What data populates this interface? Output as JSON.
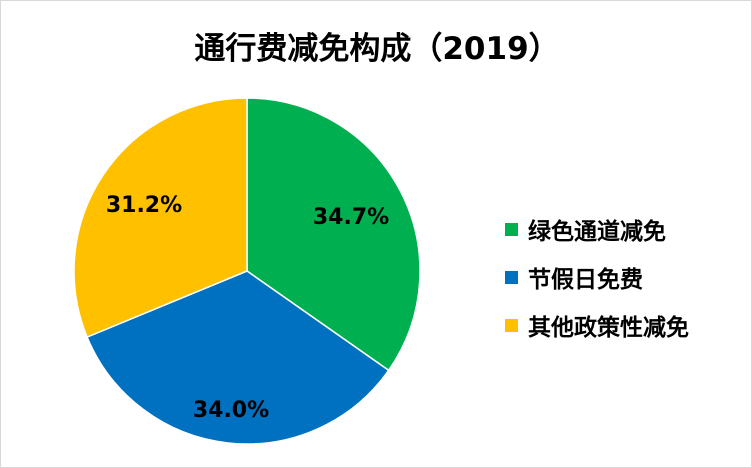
{
  "chart_data": {
    "type": "pie",
    "title": "通行费减免构成（2019）",
    "categories": [
      "绿色通道减免",
      "节假日免费",
      "其他政策性减免"
    ],
    "values": [
      34.7,
      34.0,
      31.2
    ],
    "labels": [
      "34.7%",
      "34.0%",
      "31.2%"
    ],
    "colors": [
      "#00B050",
      "#0070C0",
      "#FFC000"
    ],
    "start": "12 o'clock, clockwise",
    "legend_position": "right"
  }
}
